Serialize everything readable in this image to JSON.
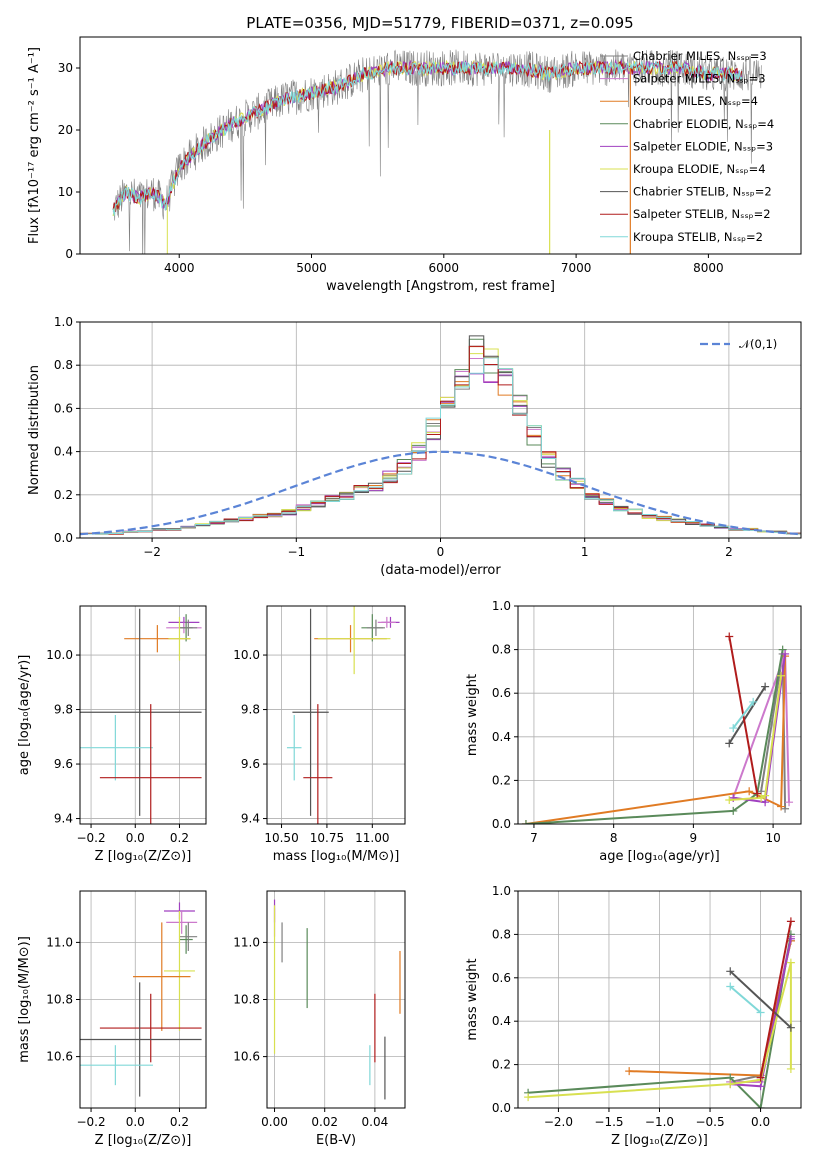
{
  "title": "PLATE=0356, MJD=51779, FIBERID=0371, z=0.095",
  "colors": {
    "Chabrier MILES": "#808080",
    "Salpeter MILES": "#cc79cc",
    "Kroupa MILES": "#e07b24",
    "Chabrier ELODIE": "#5a8a5a",
    "Salpeter ELODIE": "#a040c0",
    "Kroupa ELODIE": "#d8e050",
    "Chabrier STELIB": "#555555",
    "Salpeter STELIB": "#b01c1c",
    "Kroupa STELIB": "#80d8d8",
    "normal": "#5b84d6"
  },
  "chart_data": [
    {
      "type": "line",
      "title": "PLATE=0356, MJD=51779, FIBERID=0371, z=0.095",
      "xlabel": "wavelength [Angstrom, rest frame]",
      "ylabel": "Flux [fλ10⁻¹⁷ erg cm⁻² s⁻¹ A⁻¹]",
      "xlim": [
        3250,
        8700
      ],
      "ylim": [
        0,
        35
      ],
      "xticks": [
        4000,
        5000,
        6000,
        7000,
        8000
      ],
      "yticks": [
        0,
        10,
        20,
        30
      ],
      "legend_position": "top-right",
      "legend": [
        "Chabrier MILES, N_SSP=3",
        "Salpeter MILES, N_SSP=3",
        "Kroupa MILES, N_SSP=4",
        "Chabrier ELODIE, N_SSP=4",
        "Salpeter ELODIE, N_SSP=3",
        "Kroupa ELODIE, N_SSP=4",
        "Chabrier STELIB, N_SSP=2",
        "Salpeter STELIB, N_SSP=2",
        "Kroupa STELIB, N_SSP=2"
      ],
      "continuum": {
        "x": [
          3500,
          3600,
          3700,
          3800,
          3900,
          4000,
          4100,
          4200,
          4400,
          4600,
          4800,
          5000,
          5200,
          5400,
          5600,
          5800,
          6000,
          6200,
          6400,
          6600,
          6800,
          7000,
          7200,
          7400,
          7600,
          7800,
          8000,
          8200,
          8400
        ],
        "y": [
          7,
          10,
          9,
          10,
          8,
          14,
          16,
          18,
          21,
          23,
          25,
          26,
          27,
          29,
          30,
          30,
          30,
          30,
          30,
          30,
          29,
          30,
          30,
          30,
          30,
          30,
          29,
          29,
          29
        ]
      }
    },
    {
      "type": "step-histogram",
      "xlabel": "(data-model)/error",
      "ylabel": "Normed distribution",
      "xlim": [
        -2.5,
        2.5
      ],
      "ylim": [
        0,
        1.0
      ],
      "xticks": [
        -2,
        -1,
        0,
        1,
        2
      ],
      "yticks": [
        0.0,
        0.2,
        0.4,
        0.6,
        0.8,
        1.0
      ],
      "legend": "𝒩(0,1)",
      "legend_position": "top-right",
      "bin_width": 0.1,
      "bin_start": -2.5,
      "base_values": [
        0.02,
        0.02,
        0.02,
        0.03,
        0.03,
        0.04,
        0.04,
        0.05,
        0.06,
        0.07,
        0.08,
        0.09,
        0.1,
        0.11,
        0.12,
        0.14,
        0.16,
        0.18,
        0.2,
        0.22,
        0.24,
        0.28,
        0.33,
        0.4,
        0.5,
        0.6,
        0.72,
        0.85,
        0.8,
        0.72,
        0.6,
        0.48,
        0.36,
        0.3,
        0.25,
        0.2,
        0.17,
        0.14,
        0.12,
        0.1,
        0.09,
        0.08,
        0.07,
        0.06,
        0.05,
        0.04,
        0.04,
        0.03,
        0.03,
        0.02
      ]
    },
    {
      "type": "errorbar",
      "xlabel": "Z [log₁₀(Z/Z⊙)]",
      "ylabel": "age  [log₁₀(age/yr)]",
      "xlim": [
        -0.25,
        0.32
      ],
      "ylim": [
        9.38,
        10.18
      ],
      "xticks": [
        -0.2,
        0.0,
        0.2
      ],
      "yticks": [
        9.4,
        9.6,
        9.8,
        10.0
      ],
      "points": [
        {
          "name": "Kroupa MILES",
          "x": 0.1,
          "y": 10.06,
          "xerr": 0.15,
          "yerr": 0.05
        },
        {
          "name": "Salpeter ELODIE",
          "x": 0.22,
          "y": 10.12,
          "xerr": 0.07,
          "yerr": 0.02
        },
        {
          "name": "Salpeter MILES",
          "x": 0.22,
          "y": 10.1,
          "xerr": 0.08,
          "yerr": 0.02
        },
        {
          "name": "Chabrier ELODIE",
          "x": 0.23,
          "y": 10.1,
          "xerr": 0.03,
          "yerr": 0.05
        },
        {
          "name": "Chabrier MILES",
          "x": 0.24,
          "y": 10.1,
          "xerr": 0.04,
          "yerr": 0.03
        },
        {
          "name": "Kroupa ELODIE",
          "x": 0.2,
          "y": 10.06,
          "xerr": 0.05,
          "yerr": 0.08
        },
        {
          "name": "Chabrier STELIB",
          "x": 0.02,
          "y": 9.79,
          "xerr": 0.28,
          "yerr": 0.38
        },
        {
          "name": "Kroupa STELIB",
          "x": -0.09,
          "y": 9.66,
          "xerr": 0.17,
          "yerr": 0.12
        },
        {
          "name": "Salpeter STELIB",
          "x": 0.07,
          "y": 9.55,
          "xerr": 0.23,
          "yerr": 0.27
        }
      ]
    },
    {
      "type": "errorbar",
      "xlabel": "mass [log₁₀(M/M⊙)]",
      "xlim": [
        10.42,
        11.18
      ],
      "ylim": [
        9.38,
        10.18
      ],
      "xticks": [
        10.5,
        10.75,
        11.0
      ],
      "yticks": [
        9.4,
        9.6,
        9.8,
        10.0
      ],
      "points": [
        {
          "name": "Kroupa MILES",
          "x": 10.88,
          "y": 10.06,
          "xerr": 0.2,
          "yerr": 0.05
        },
        {
          "name": "Salpeter ELODIE",
          "x": 11.1,
          "y": 10.12,
          "xerr": 0.05,
          "yerr": 0.02
        },
        {
          "name": "Salpeter MILES",
          "x": 11.08,
          "y": 10.12,
          "xerr": 0.05,
          "yerr": 0.02
        },
        {
          "name": "Chabrier ELODIE",
          "x": 11.0,
          "y": 10.1,
          "xerr": 0.06,
          "yerr": 0.05
        },
        {
          "name": "Chabrier MILES",
          "x": 11.02,
          "y": 10.1,
          "xerr": 0.05,
          "yerr": 0.03
        },
        {
          "name": "Kroupa ELODIE",
          "x": 10.9,
          "y": 10.06,
          "xerr": 0.2,
          "yerr": 0.13
        },
        {
          "name": "Chabrier STELIB",
          "x": 10.66,
          "y": 9.79,
          "xerr": 0.1,
          "yerr": 0.38
        },
        {
          "name": "Kroupa STELIB",
          "x": 10.57,
          "y": 9.66,
          "xerr": 0.04,
          "yerr": 0.12
        },
        {
          "name": "Salpeter STELIB",
          "x": 10.7,
          "y": 9.55,
          "xerr": 0.08,
          "yerr": 0.27
        }
      ]
    },
    {
      "type": "line",
      "xlabel": "age  [log₁₀(age/yr)]",
      "ylabel": "mass weight",
      "xlim": [
        6.8,
        10.35
      ],
      "ylim": [
        0,
        1.0
      ],
      "xticks": [
        7,
        8,
        9,
        10
      ],
      "yticks": [
        0.0,
        0.2,
        0.4,
        0.6,
        0.8,
        1.0
      ],
      "series": [
        {
          "name": "Chabrier MILES",
          "x": [
            9.85,
            10.12,
            10.15
          ],
          "y": [
            0.15,
            0.78,
            0.07
          ]
        },
        {
          "name": "Salpeter MILES",
          "x": [
            9.5,
            10.15,
            10.2
          ],
          "y": [
            0.12,
            0.78,
            0.1
          ]
        },
        {
          "name": "Kroupa MILES",
          "x": [
            6.9,
            9.7,
            10.1,
            10.15
          ],
          "y": [
            0.0,
            0.15,
            0.08,
            0.77
          ]
        },
        {
          "name": "Chabrier ELODIE",
          "x": [
            6.9,
            9.5,
            9.8,
            10.12
          ],
          "y": [
            0.0,
            0.06,
            0.14,
            0.8
          ]
        },
        {
          "name": "Salpeter ELODIE",
          "x": [
            9.5,
            9.9,
            10.15
          ],
          "y": [
            0.12,
            0.1,
            0.78
          ]
        },
        {
          "name": "Kroupa ELODIE",
          "x": [
            9.45,
            9.85,
            9.9,
            10.1
          ],
          "y": [
            0.11,
            0.12,
            0.13,
            0.68
          ]
        },
        {
          "name": "Chabrier STELIB",
          "x": [
            9.45,
            9.9
          ],
          "y": [
            0.37,
            0.63
          ]
        },
        {
          "name": "Salpeter STELIB",
          "x": [
            9.45,
            9.8
          ],
          "y": [
            0.86,
            0.14
          ]
        },
        {
          "name": "Kroupa STELIB",
          "x": [
            9.5,
            9.75
          ],
          "y": [
            0.44,
            0.56
          ]
        }
      ]
    },
    {
      "type": "errorbar",
      "xlabel": "Z [log₁₀(Z/Z⊙)]",
      "ylabel": "mass [log₁₀(M/M⊙)]",
      "xlim": [
        -0.25,
        0.32
      ],
      "ylim": [
        10.42,
        11.18
      ],
      "xticks": [
        -0.2,
        0.0,
        0.2
      ],
      "yticks": [
        10.6,
        10.8,
        11.0
      ],
      "points": [
        {
          "name": "Salpeter ELODIE",
          "x": 0.2,
          "y": 11.11,
          "xerr": 0.07,
          "yerr": 0.03
        },
        {
          "name": "Salpeter MILES",
          "x": 0.21,
          "y": 11.07,
          "xerr": 0.07,
          "yerr": 0.04
        },
        {
          "name": "Chabrier ELODIE",
          "x": 0.23,
          "y": 11.01,
          "xerr": 0.03,
          "yerr": 0.05
        },
        {
          "name": "Chabrier MILES",
          "x": 0.24,
          "y": 11.02,
          "xerr": 0.04,
          "yerr": 0.05
        },
        {
          "name": "Kroupa ELODIE",
          "x": 0.2,
          "y": 10.9,
          "xerr": 0.07,
          "yerr": 0.21
        },
        {
          "name": "Kroupa MILES",
          "x": 0.12,
          "y": 10.88,
          "xerr": 0.13,
          "yerr": 0.19
        },
        {
          "name": "Salpeter STELIB",
          "x": 0.07,
          "y": 10.7,
          "xerr": 0.23,
          "yerr": 0.12
        },
        {
          "name": "Chabrier STELIB",
          "x": 0.02,
          "y": 10.66,
          "xerr": 0.28,
          "yerr": 0.2
        },
        {
          "name": "Kroupa STELIB",
          "x": -0.09,
          "y": 10.57,
          "xerr": 0.17,
          "yerr": 0.07
        }
      ]
    },
    {
      "type": "errorbar",
      "xlabel": "E(B-V)",
      "xlim": [
        -0.003,
        0.052
      ],
      "ylim": [
        10.42,
        11.18
      ],
      "xticks": [
        0.0,
        0.02,
        0.04
      ],
      "yticks": [
        10.6,
        10.8,
        11.0
      ],
      "points": [
        {
          "name": "Salpeter MILES",
          "x": 0.0,
          "y": 11.07,
          "xerr": 0,
          "yerr": 0.05
        },
        {
          "name": "Salpeter ELODIE",
          "x": 0.0,
          "y": 11.11,
          "xerr": 0,
          "yerr": 0.04
        },
        {
          "name": "Kroupa ELODIE",
          "x": 0.0,
          "y": 10.87,
          "xerr": 0,
          "yerr": 0.26
        },
        {
          "name": "Chabrier MILES",
          "x": 0.003,
          "y": 11.0,
          "xerr": 0,
          "yerr": 0.07
        },
        {
          "name": "Chabrier ELODIE",
          "x": 0.013,
          "y": 10.91,
          "xerr": 0,
          "yerr": 0.14
        },
        {
          "name": "Kroupa STELIB",
          "x": 0.038,
          "y": 10.57,
          "xerr": 0,
          "yerr": 0.07
        },
        {
          "name": "Salpeter STELIB",
          "x": 0.04,
          "y": 10.7,
          "xerr": 0,
          "yerr": 0.12
        },
        {
          "name": "Chabrier STELIB",
          "x": 0.044,
          "y": 10.56,
          "xerr": 0,
          "yerr": 0.11
        },
        {
          "name": "Kroupa MILES",
          "x": 0.05,
          "y": 10.86,
          "xerr": 0,
          "yerr": 0.11
        }
      ]
    },
    {
      "type": "line",
      "xlabel": "Z [log₁₀(Z/Z⊙)]",
      "ylabel": "mass weight",
      "xlim": [
        -2.4,
        0.4
      ],
      "ylim": [
        0,
        1.0
      ],
      "xticks": [
        -2.0,
        -1.5,
        -1.0,
        -0.5,
        0.0
      ],
      "yticks": [
        0.0,
        0.2,
        0.4,
        0.6,
        0.8,
        1.0
      ],
      "series": [
        {
          "name": "Chabrier MILES",
          "x": [
            -0.3,
            0.0,
            0.3
          ],
          "y": [
            0.12,
            0.15,
            0.77
          ]
        },
        {
          "name": "Salpeter MILES",
          "x": [
            -0.3,
            0.0,
            0.3
          ],
          "y": [
            0.12,
            0.12,
            0.79
          ]
        },
        {
          "name": "Kroupa MILES",
          "x": [
            -1.3,
            0.0,
            0.3
          ],
          "y": [
            0.17,
            0.15,
            0.77
          ]
        },
        {
          "name": "Chabrier ELODIE",
          "x": [
            -2.3,
            -0.3,
            0.0,
            0.3
          ],
          "y": [
            0.07,
            0.14,
            0.0,
            0.8
          ]
        },
        {
          "name": "Salpeter ELODIE",
          "x": [
            -0.3,
            0.0,
            0.3
          ],
          "y": [
            0.11,
            0.1,
            0.78
          ]
        },
        {
          "name": "Kroupa ELODIE",
          "x": [
            -2.3,
            -0.3,
            0.0,
            0.3,
            0.3
          ],
          "y": [
            0.05,
            0.11,
            0.13,
            0.67,
            0.18
          ]
        },
        {
          "name": "Chabrier STELIB",
          "x": [
            -0.3,
            0.3
          ],
          "y": [
            0.63,
            0.37
          ]
        },
        {
          "name": "Salpeter STELIB",
          "x": [
            0.0,
            0.3
          ],
          "y": [
            0.14,
            0.86
          ]
        },
        {
          "name": "Kroupa STELIB",
          "x": [
            -0.3,
            0.0
          ],
          "y": [
            0.56,
            0.44
          ]
        }
      ]
    }
  ]
}
